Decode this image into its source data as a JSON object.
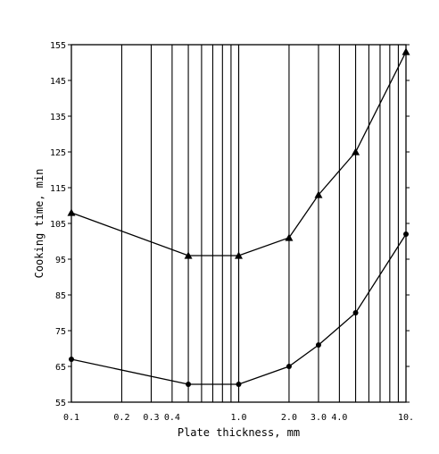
{
  "chart_data": {
    "type": "line",
    "xscale": "log",
    "xlim": [
      0.1,
      10.0
    ],
    "ylim": [
      55,
      155
    ],
    "xlabel": "Plate thickness, mm",
    "ylabel": "Cooking time, min",
    "grid": "vertical",
    "x_tick_labels": [
      {
        "value": 0.1,
        "label": "0.1"
      },
      {
        "value": 0.2,
        "label": "0.2"
      },
      {
        "value": 0.3,
        "label": "0.3"
      },
      {
        "value": 0.4,
        "label": "0.4"
      },
      {
        "value": 1.0,
        "label": "1.0"
      },
      {
        "value": 2.0,
        "label": "2.0"
      },
      {
        "value": 3.0,
        "label": "3.0"
      },
      {
        "value": 4.0,
        "label": "4.0"
      },
      {
        "value": 10.0,
        "label": "10."
      }
    ],
    "y_ticks": [
      55,
      65,
      75,
      85,
      95,
      105,
      115,
      125,
      135,
      145,
      155
    ],
    "series": [
      {
        "marker": "triangle",
        "points": [
          {
            "x": 0.1,
            "y": 108
          },
          {
            "x": 0.5,
            "y": 96
          },
          {
            "x": 1.0,
            "y": 96
          },
          {
            "x": 2.0,
            "y": 101
          },
          {
            "x": 3.0,
            "y": 113
          },
          {
            "x": 5.0,
            "y": 125
          },
          {
            "x": 10.0,
            "y": 153
          }
        ]
      },
      {
        "marker": "circle",
        "points": [
          {
            "x": 0.1,
            "y": 67
          },
          {
            "x": 0.5,
            "y": 60
          },
          {
            "x": 1.0,
            "y": 60
          },
          {
            "x": 2.0,
            "y": 65
          },
          {
            "x": 3.0,
            "y": 71
          },
          {
            "x": 5.0,
            "y": 80
          },
          {
            "x": 10.0,
            "y": 102
          }
        ]
      }
    ]
  }
}
